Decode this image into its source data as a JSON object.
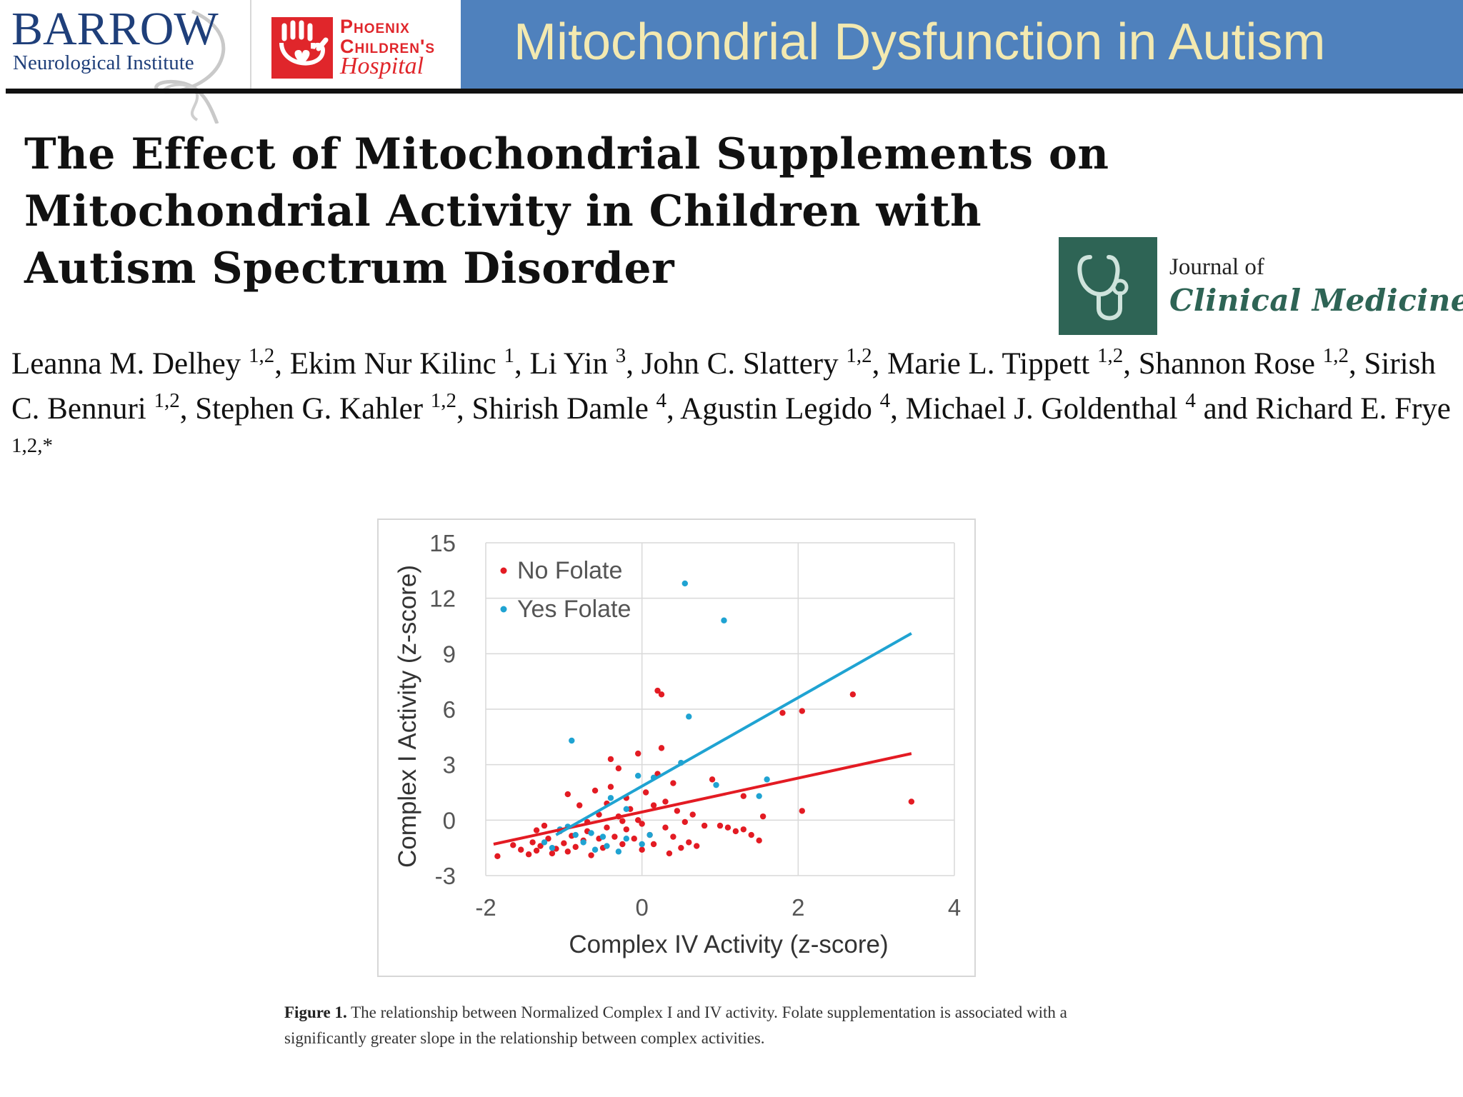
{
  "header": {
    "barrow_logo": {
      "name": "BARROW",
      "subtitle": "Neurological Institute"
    },
    "pch_logo": {
      "line1": "Phoenix",
      "line2": "Children's",
      "line3": "Hospital"
    },
    "slide_title": "Mitochondrial Dysfunction in Autism",
    "colors": {
      "band": "#4f81bd",
      "band_text": "#f3e9b0",
      "barrow": "#1f3f7a",
      "pch": "#e0262b"
    }
  },
  "paper": {
    "title": "The Effect of Mitochondrial Supplements on Mitochondrial Activity in Children with Autism Spectrum Disorder",
    "journal": {
      "line1": "Journal of",
      "line2": "Clinical Medicine",
      "icon": "stethoscope-icon",
      "color": "#2e6455"
    },
    "authors": [
      {
        "name": "Leanna M. Delhey",
        "aff": "1,2"
      },
      {
        "name": "Ekim Nur Kilinc",
        "aff": "1"
      },
      {
        "name": "Li Yin",
        "aff": "3"
      },
      {
        "name": "John C. Slattery",
        "aff": "1,2"
      },
      {
        "name": "Marie L. Tippett",
        "aff": "1,2"
      },
      {
        "name": "Shannon Rose",
        "aff": "1,2"
      },
      {
        "name": "Sirish C. Bennuri",
        "aff": "1,2"
      },
      {
        "name": "Stephen G. Kahler",
        "aff": "1,2"
      },
      {
        "name": "Shirish Damle",
        "aff": "4"
      },
      {
        "name": "Agustin Legido",
        "aff": "4"
      },
      {
        "name": "Michael J. Goldenthal",
        "aff": "4"
      },
      {
        "name": "Richard E. Frye",
        "aff": "1,2,*"
      }
    ],
    "author_separators": [
      ", ",
      ", ",
      ", ",
      ", ",
      ", ",
      ", ",
      ", ",
      ", ",
      ", ",
      ", ",
      " and ",
      ""
    ],
    "caption": {
      "label": "Figure 1.",
      "text": "The relationship between Normalized Complex I and IV activity. Folate supplementation is associated with a significantly greater slope in the relationship between complex activities."
    }
  },
  "chart_data": {
    "type": "scatter",
    "title": "",
    "xlabel": "Complex IV Activity (z-score)",
    "ylabel": "Complex I Activity (z-score)",
    "xlim": [
      -2,
      4
    ],
    "ylim": [
      -3,
      15
    ],
    "xticks": [
      "-2",
      "0",
      "2",
      "4"
    ],
    "yticks": [
      "-3",
      "0",
      "3",
      "6",
      "9",
      "12",
      "15"
    ],
    "grid": true,
    "legend_position": "top-left",
    "series": [
      {
        "name": "No Folate",
        "color": "#e31b23",
        "points": [
          [
            -1.85,
            -1.95
          ],
          [
            -1.65,
            -1.35
          ],
          [
            -1.55,
            -1.6
          ],
          [
            -1.45,
            -1.85
          ],
          [
            -1.4,
            -1.2
          ],
          [
            -1.35,
            -1.65
          ],
          [
            -1.3,
            -1.4
          ],
          [
            -1.25,
            -0.3
          ],
          [
            -1.2,
            -1.0
          ],
          [
            -1.15,
            -1.8
          ],
          [
            -1.1,
            -1.55
          ],
          [
            -1.05,
            -0.6
          ],
          [
            -1.0,
            -1.25
          ],
          [
            -0.95,
            1.4
          ],
          [
            -0.95,
            -1.7
          ],
          [
            -0.9,
            -0.85
          ],
          [
            -0.85,
            -1.45
          ],
          [
            -0.8,
            0.8
          ],
          [
            -0.75,
            -1.1
          ],
          [
            -0.7,
            -0.6
          ],
          [
            -0.65,
            -1.9
          ],
          [
            -0.6,
            1.6
          ],
          [
            -0.55,
            0.3
          ],
          [
            -0.55,
            -1.0
          ],
          [
            -0.5,
            -1.5
          ],
          [
            -0.45,
            0.9
          ],
          [
            -0.45,
            -0.4
          ],
          [
            -0.4,
            3.3
          ],
          [
            -0.4,
            1.8
          ],
          [
            -0.35,
            -0.9
          ],
          [
            -0.3,
            2.8
          ],
          [
            -0.3,
            0.2
          ],
          [
            -0.25,
            -1.3
          ],
          [
            -0.2,
            1.2
          ],
          [
            -0.2,
            -0.5
          ],
          [
            -0.15,
            0.6
          ],
          [
            -0.1,
            -1.0
          ],
          [
            -0.05,
            3.6
          ],
          [
            -0.05,
            0.0
          ],
          [
            0.0,
            -1.6
          ],
          [
            0.0,
            -0.2
          ],
          [
            0.05,
            1.5
          ],
          [
            0.1,
            -0.8
          ],
          [
            0.15,
            0.8
          ],
          [
            0.15,
            -1.3
          ],
          [
            0.2,
            2.5
          ],
          [
            0.2,
            7.0
          ],
          [
            0.25,
            6.8
          ],
          [
            0.25,
            3.9
          ],
          [
            0.3,
            -0.4
          ],
          [
            0.3,
            1.0
          ],
          [
            0.35,
            -1.8
          ],
          [
            0.4,
            -0.9
          ],
          [
            0.4,
            2.0
          ],
          [
            0.45,
            0.5
          ],
          [
            0.5,
            -1.5
          ],
          [
            0.55,
            -0.1
          ],
          [
            0.6,
            -1.2
          ],
          [
            0.65,
            0.3
          ],
          [
            0.7,
            -1.4
          ],
          [
            0.8,
            -0.3
          ],
          [
            0.9,
            2.2
          ],
          [
            1.0,
            -0.3
          ],
          [
            1.1,
            -0.4
          ],
          [
            1.2,
            -0.6
          ],
          [
            1.3,
            1.3
          ],
          [
            1.4,
            -0.8
          ],
          [
            1.5,
            -1.1
          ],
          [
            1.55,
            0.2
          ],
          [
            1.8,
            5.8
          ],
          [
            2.05,
            5.9
          ],
          [
            2.05,
            0.5
          ],
          [
            2.7,
            6.8
          ],
          [
            3.45,
            1.0
          ],
          [
            1.3,
            -0.5
          ],
          [
            -1.35,
            -0.55
          ],
          [
            -0.25,
            -0.05
          ],
          [
            -0.7,
            -0.1
          ]
        ]
      },
      {
        "name": "Yes Folate",
        "color": "#1fa3d2",
        "points": [
          [
            0.55,
            12.8
          ],
          [
            1.05,
            10.8
          ],
          [
            -0.9,
            4.3
          ],
          [
            0.6,
            5.6
          ],
          [
            0.5,
            3.1
          ],
          [
            -0.05,
            2.4
          ],
          [
            0.15,
            2.3
          ],
          [
            1.6,
            2.2
          ],
          [
            1.5,
            1.3
          ],
          [
            0.95,
            1.9
          ],
          [
            -0.4,
            1.2
          ],
          [
            -0.2,
            0.6
          ],
          [
            -1.05,
            -0.5
          ],
          [
            -0.95,
            -0.35
          ],
          [
            -0.85,
            -0.8
          ],
          [
            -0.75,
            -1.2
          ],
          [
            -0.6,
            -1.6
          ],
          [
            -0.5,
            -0.9
          ],
          [
            -0.45,
            -1.4
          ],
          [
            -0.3,
            -1.7
          ],
          [
            -0.2,
            -1.0
          ],
          [
            0.0,
            -1.3
          ],
          [
            -1.15,
            -1.5
          ],
          [
            -1.25,
            -1.2
          ],
          [
            -0.65,
            -0.7
          ],
          [
            0.1,
            -0.8
          ]
        ]
      }
    ],
    "trendlines": [
      {
        "series": "No Folate",
        "x": [
          -1.9,
          3.45
        ],
        "y": [
          -1.3,
          3.6
        ]
      },
      {
        "series": "Yes Folate",
        "x": [
          -1.1,
          3.45
        ],
        "y": [
          -0.8,
          10.1
        ]
      }
    ]
  }
}
